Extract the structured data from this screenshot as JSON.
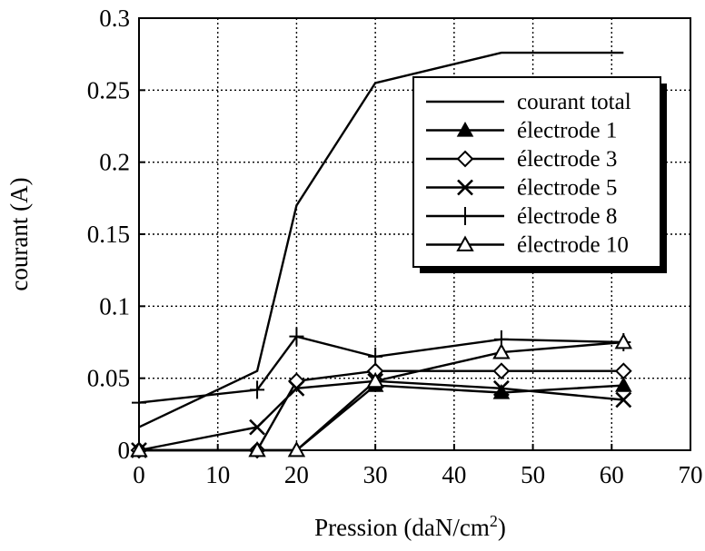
{
  "chart_data": {
    "type": "line",
    "xlabel": "Pression (daN/cm",
    "xlabel_sup": "2",
    "xlabel_end": ")",
    "ylabel": "courant (A)",
    "xlim": [
      0,
      70
    ],
    "ylim": [
      0,
      0.3
    ],
    "x_ticks": [
      "0",
      "10",
      "20",
      "30",
      "40",
      "50",
      "60",
      "70"
    ],
    "y_ticks": [
      "0",
      "0.05",
      "0.1",
      "0.15",
      "0.2",
      "0.25",
      "0.3"
    ],
    "x_tick_values": [
      0,
      10,
      20,
      30,
      40,
      50,
      60,
      70
    ],
    "y_tick_values": [
      0,
      0.05,
      0.1,
      0.15,
      0.2,
      0.25,
      0.3
    ],
    "grid": true,
    "legend_position": "top-right",
    "series": [
      {
        "name": "courant total",
        "marker": "none",
        "x": [
          0,
          15,
          20,
          30,
          46,
          61.5
        ],
        "y": [
          0.016,
          0.055,
          0.17,
          0.255,
          0.276,
          0.276
        ]
      },
      {
        "name": "électrode 1",
        "marker": "triangle-filled",
        "x": [
          0,
          15,
          20,
          30,
          46,
          61.5
        ],
        "y": [
          0,
          0,
          0,
          0.045,
          0.04,
          0.045
        ]
      },
      {
        "name": "électrode 3",
        "marker": "diamond",
        "x": [
          0,
          15,
          20,
          30,
          46,
          61.5
        ],
        "y": [
          0,
          0,
          0.048,
          0.055,
          0.055,
          0.055
        ]
      },
      {
        "name": "électrode 5",
        "marker": "x",
        "x": [
          0,
          15,
          20,
          30,
          46,
          61.5
        ],
        "y": [
          0,
          0.016,
          0.043,
          0.048,
          0.043,
          0.035
        ]
      },
      {
        "name": "électrode 8",
        "marker": "plus",
        "x": [
          0,
          15,
          20,
          30,
          46,
          61.5
        ],
        "y": [
          0.033,
          0.042,
          0.079,
          0.065,
          0.077,
          0.075
        ]
      },
      {
        "name": "électrode 10",
        "marker": "triangle-open",
        "x": [
          0,
          15,
          20,
          30,
          46,
          61.5
        ],
        "y": [
          0,
          0,
          0,
          0.048,
          0.068,
          0.075
        ]
      }
    ]
  }
}
